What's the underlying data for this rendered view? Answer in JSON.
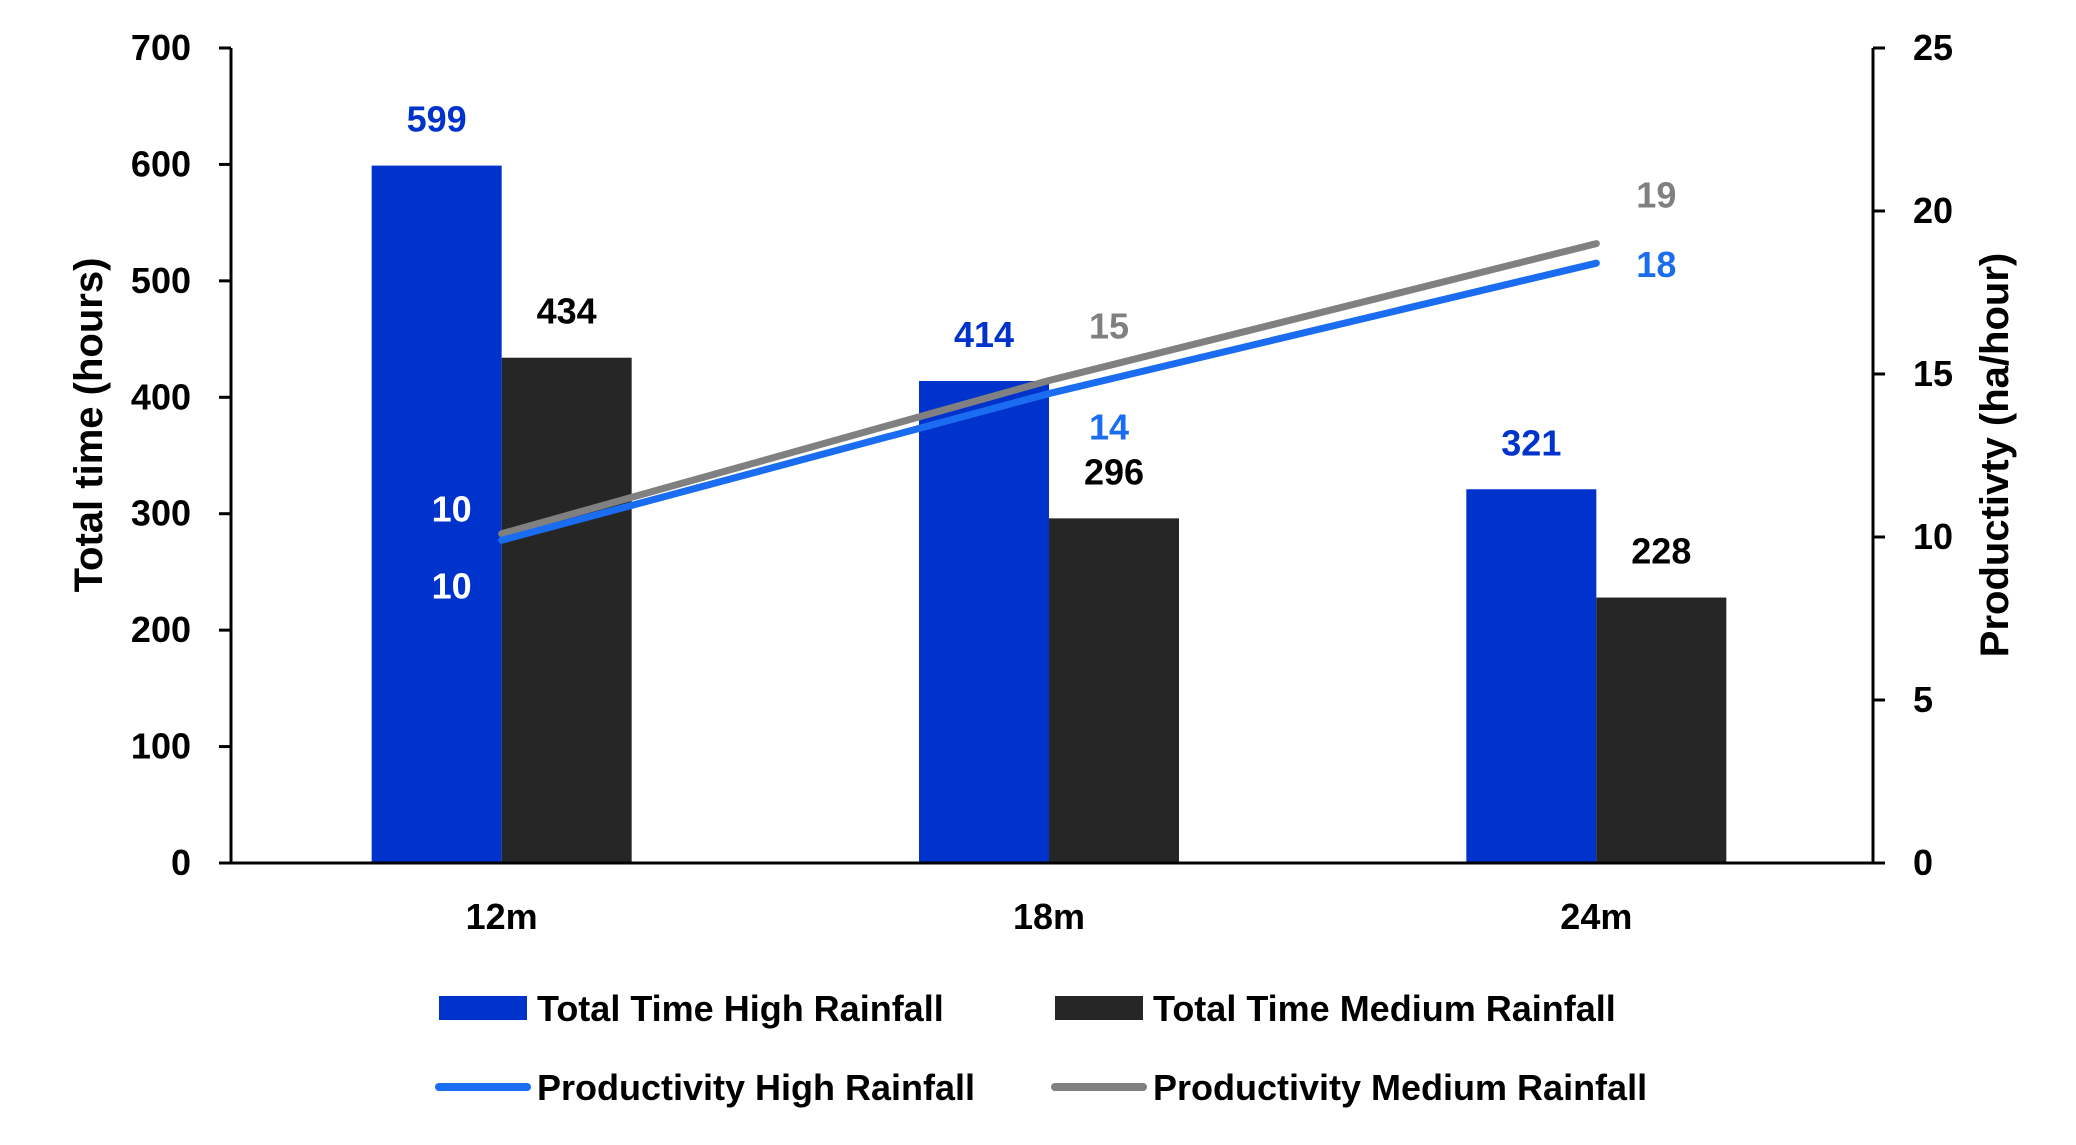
{
  "chart_data": {
    "type": "bar",
    "categories": [
      "12m",
      "18m",
      "24m"
    ],
    "ylabel": "Total time (hours)",
    "y2label": "Productivty (ha/hour)",
    "ylim": [
      0,
      700
    ],
    "y2lim": [
      0,
      25
    ],
    "yticks": [
      "0",
      "100",
      "200",
      "300",
      "400",
      "500",
      "600",
      "700"
    ],
    "y2ticks": [
      "0",
      "5",
      "10",
      "15",
      "20",
      "25"
    ],
    "grid": false,
    "legend_position": "bottom",
    "bar_series": [
      {
        "name": "Total Time High Rainfall",
        "values": [
          599,
          414,
          321
        ],
        "labels": [
          "599",
          "414",
          "321"
        ],
        "color": "#0033cc",
        "label_color": "#0033cc"
      },
      {
        "name": "Total Time Medium Rainfall",
        "values": [
          434,
          296,
          228
        ],
        "labels": [
          "434",
          "296",
          "228"
        ],
        "color": "#262626",
        "label_color": "#000000"
      }
    ],
    "line_series": [
      {
        "name": "Productivity High Rainfall",
        "values": [
          9.9,
          14.4,
          18.4
        ],
        "labels": [
          "10",
          "14",
          "18"
        ],
        "color": "#1a6cf0",
        "label_colors": [
          "#ffffff",
          "#1a6cf0",
          "#1a6cf0"
        ]
      },
      {
        "name": "Productivity Medium Rainfall",
        "values": [
          10.1,
          14.8,
          19.0
        ],
        "labels": [
          "10",
          "15",
          "19"
        ],
        "color": "#808080",
        "label_colors": [
          "#ffffff",
          "#808080",
          "#808080"
        ]
      }
    ]
  }
}
